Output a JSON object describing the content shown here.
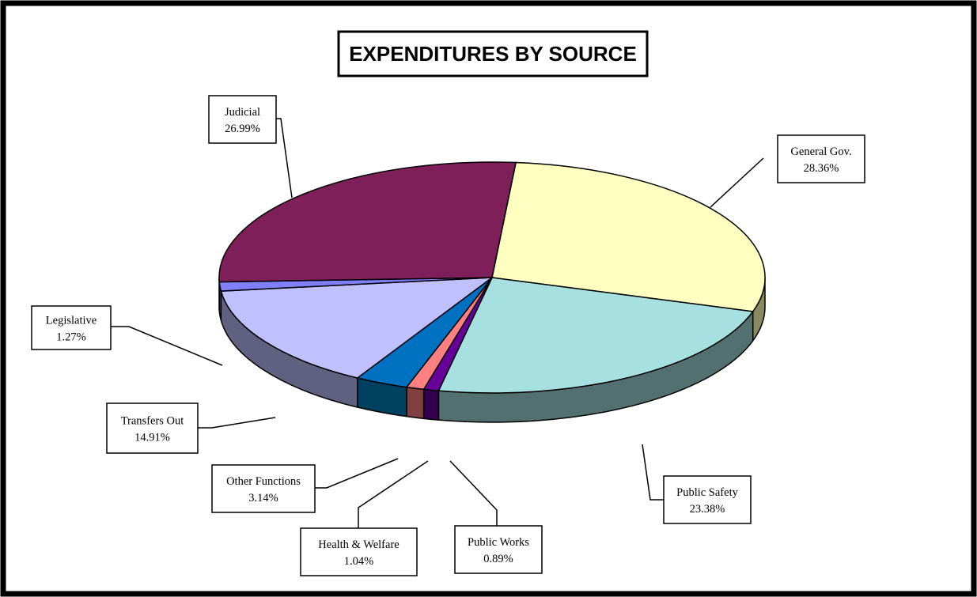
{
  "chart_data": {
    "type": "pie",
    "title": "EXPENDITURES BY SOURCE",
    "three_d": true,
    "slices": [
      {
        "name": "General Gov.",
        "value": 28.36,
        "pct_label": "28.36%",
        "color": "#FFFFC0",
        "side_color": "#8A8A60"
      },
      {
        "name": "Public Safety",
        "value": 23.38,
        "pct_label": "23.38%",
        "color": "#A6E0E0",
        "side_color": "#527070"
      },
      {
        "name": "Public Works",
        "value": 0.89,
        "pct_label": "0.89%",
        "color": "#660099",
        "side_color": "#33004D"
      },
      {
        "name": "Health & Welfare",
        "value": 1.04,
        "pct_label": "1.04%",
        "color": "#FF8080",
        "side_color": "#804040"
      },
      {
        "name": "Other Functions",
        "value": 3.14,
        "pct_label": "3.14%",
        "color": "#0070C0",
        "side_color": "#004060"
      },
      {
        "name": "Transfers Out",
        "value": 14.91,
        "pct_label": "14.91%",
        "color": "#C0C0FF",
        "side_color": "#606080"
      },
      {
        "name": "Legislative",
        "value": 1.27,
        "pct_label": "1.27%",
        "color": "#8080FF",
        "side_color": "#404080"
      },
      {
        "name": "Judicial",
        "value": 26.99,
        "pct_label": "26.99%",
        "color": "#7F1F5A",
        "side_color": "#40102D"
      }
    ]
  }
}
